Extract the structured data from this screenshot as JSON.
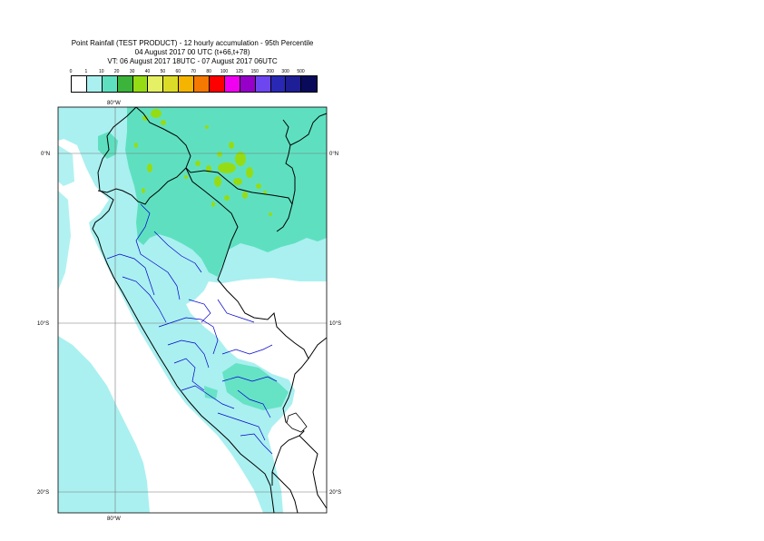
{
  "header": {
    "line1": "Point Rainfall (TEST PRODUCT) - 12 hourly accumulation - 95th Percentile",
    "line2": "04 August 2017 00 UTC (t+66,t+78)",
    "line3": "VT: 06 August 2017 18UTC - 07 August 2017 06UTC"
  },
  "legend": {
    "thresholds": [
      "0",
      "1",
      "10",
      "20",
      "30",
      "40",
      "50",
      "60",
      "70",
      "80",
      "100",
      "125",
      "150",
      "200",
      "300",
      "500"
    ],
    "colors": [
      "#ffffff",
      "#aaf0f0",
      "#5ee0c0",
      "#3cb43c",
      "#96dc14",
      "#e6f064",
      "#dcdc28",
      "#f5b400",
      "#f57800",
      "#ff0000",
      "#f000f0",
      "#9600c8",
      "#6e46f0",
      "#2828b4",
      "#1e1e96",
      "#0a0a5a"
    ]
  },
  "map": {
    "lat_labels": {
      "eq_left": "0°N",
      "eq_right": "0°N",
      "s10_left": "10°S",
      "s10_right": "10°S",
      "s20_left": "20°S",
      "s20_right": "20°S"
    },
    "lon_labels": {
      "top": "80°W",
      "bottom": "80°W"
    },
    "colors": {
      "light_cyan": "#aaf0f0",
      "teal": "#5ee0c0",
      "green": "#96dc14",
      "country_border": "#000000",
      "region_border": "#0000cc",
      "grid": "#777777"
    }
  }
}
